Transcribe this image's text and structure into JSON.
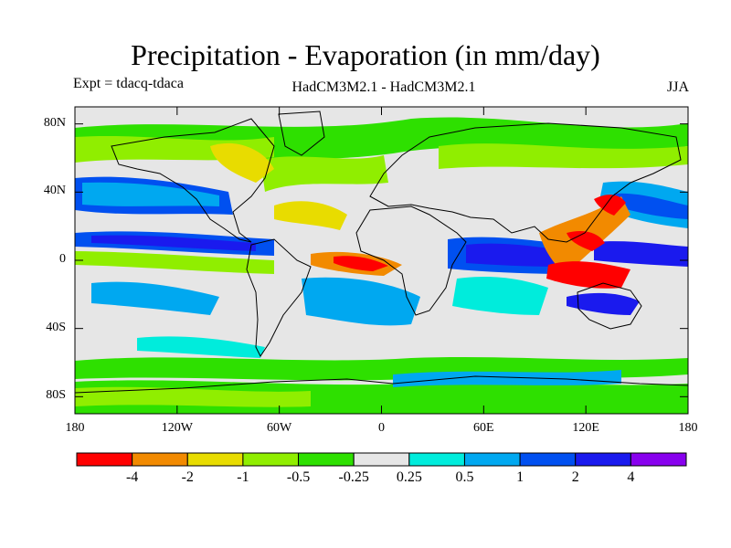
{
  "header": {
    "title": "Precipitation - Evaporation (in mm/day)",
    "experiment": "Expt = tdacq-tdaca",
    "models": "HadCM3M2.1 - HadCM3M2.1",
    "season": "JJA"
  },
  "map": {
    "projection": "cylindrical equidistant",
    "lon_range": [
      -180,
      180
    ],
    "lat_range": [
      -90,
      90
    ],
    "y_ticks": [
      {
        "lat": 80,
        "label": "80N"
      },
      {
        "lat": 40,
        "label": "40N"
      },
      {
        "lat": 0,
        "label": "0"
      },
      {
        "lat": -40,
        "label": "40S"
      },
      {
        "lat": -80,
        "label": "80S"
      }
    ],
    "x_ticks": [
      {
        "lon": -180,
        "label": "180"
      },
      {
        "lon": -120,
        "label": "120W"
      },
      {
        "lon": -60,
        "label": "60W"
      },
      {
        "lon": 0,
        "label": "0"
      },
      {
        "lon": 60,
        "label": "60E"
      },
      {
        "lon": 120,
        "label": "120E"
      },
      {
        "lon": 180,
        "label": "180"
      }
    ],
    "background_color": "#e6e6e6"
  },
  "colorbar": {
    "colors": [
      "#ff0000",
      "#f28a00",
      "#e8dc00",
      "#90ee00",
      "#2ee000",
      "#e6e6e6",
      "#00ecdc",
      "#00a8f0",
      "#0050f0",
      "#1a1aee",
      "#8800ee"
    ],
    "labels": [
      "-4",
      "-2",
      "-1",
      "-0.5",
      "-0.25",
      "0.25",
      "0.5",
      "1",
      "2",
      "4"
    ]
  },
  "regions": [
    {
      "name": "tropical-west-pacific-drying",
      "color": "#ff0000",
      "lon": 108,
      "lat": -5
    },
    {
      "name": "gulf-of-guinea-drying",
      "color": "#ff0000",
      "lon": -5,
      "lat": 0
    },
    {
      "name": "east-asia-drying",
      "color": "#f28a00",
      "lon": 130,
      "lat": 28
    },
    {
      "name": "indian-ocean-wetting",
      "color": "#1a1aee",
      "lon": 80,
      "lat": 5
    },
    {
      "name": "pacific-itcz-wetting",
      "color": "#0050f0",
      "lon": -140,
      "lat": 8
    },
    {
      "name": "south-atlantic-wetting",
      "color": "#00a8f0",
      "lon": -20,
      "lat": -25
    }
  ]
}
